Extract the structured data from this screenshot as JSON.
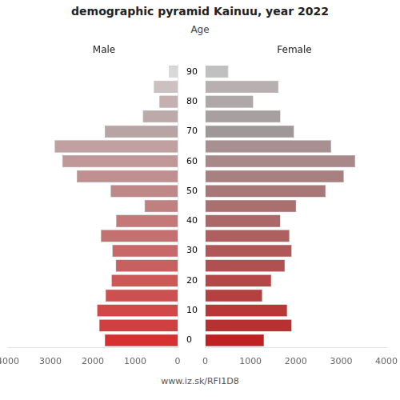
{
  "chart_data": {
    "type": "bar",
    "orientation": "horizontal",
    "title": "demographic pyramid Kainuu, year 2022",
    "ylabel": "Age",
    "annotations": [
      "www.iz.sk/RFI1D8"
    ],
    "categories": [
      "90",
      null,
      "80",
      null,
      "70",
      null,
      "60",
      null,
      "50",
      null,
      "40",
      null,
      "30",
      null,
      "20",
      null,
      "10",
      null,
      "0"
    ],
    "series": [
      {
        "name": "Male",
        "colors": [
          "#d8d8d8",
          "#ccc0c0",
          "#c4b0b0",
          "#bcaaaa",
          "#b8a4a4",
          "#c0a0a0",
          "#c09898",
          "#c09090",
          "#bf8888",
          "#c08080",
          "#c47878",
          "#c47070",
          "#c86868",
          "#c86060",
          "#cc5858",
          "#cc5050",
          "#d04848",
          "#d04040",
          "#d83030"
        ],
        "values": [
          200,
          560,
          430,
          820,
          1720,
          2900,
          2720,
          2380,
          1580,
          780,
          1450,
          1810,
          1540,
          1460,
          1560,
          1700,
          1900,
          1850,
          1720
        ]
      },
      {
        "name": "Female",
        "colors": [
          "#c0c0c0",
          "#b8b0b0",
          "#b0a8a8",
          "#a8a0a0",
          "#a09898",
          "#a89090",
          "#a88888",
          "#a88080",
          "#a87878",
          "#aa7070",
          "#ac6868",
          "#ac6060",
          "#b05858",
          "#b05050",
          "#b44848",
          "#b44040",
          "#b83838",
          "#b83030",
          "#c02020"
        ],
        "values": [
          510,
          1620,
          1060,
          1660,
          1960,
          2780,
          3310,
          3060,
          2660,
          2010,
          1660,
          1860,
          1910,
          1760,
          1460,
          1260,
          1810,
          1910,
          1300
        ]
      }
    ],
    "xlim": [
      0,
      4000
    ],
    "xticks": [
      0,
      1000,
      2000,
      3000,
      4000
    ],
    "grid": false
  }
}
